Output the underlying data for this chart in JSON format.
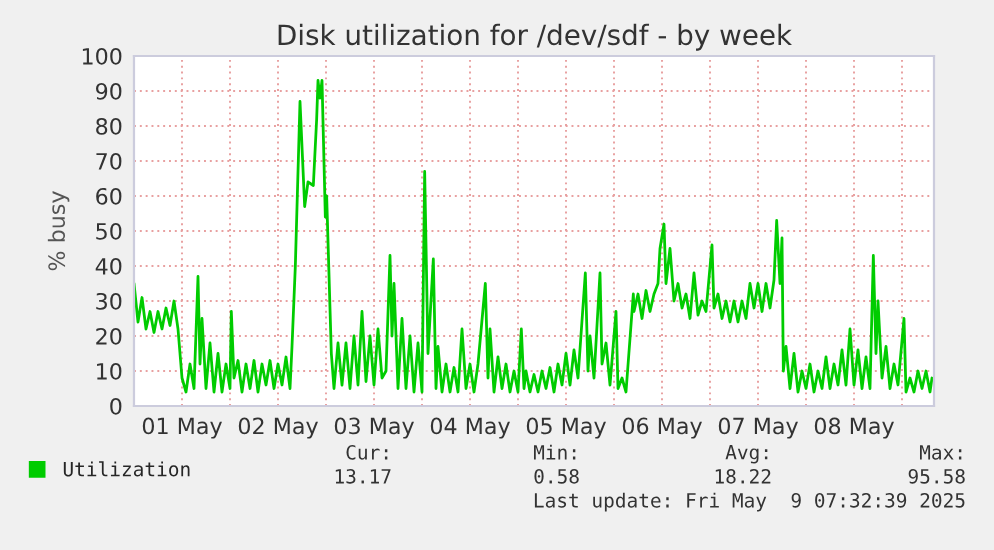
{
  "chart_data": {
    "type": "line",
    "title": "Disk utilization for /dev/sdf - by week",
    "ylabel": "% busy",
    "xlim": [
      "2025-05-01T00:00",
      "2025-05-09T08:00"
    ],
    "xticks": [
      {
        "value": "2025-05-01T12:00",
        "label": "01 May"
      },
      {
        "value": "2025-05-02T00:00",
        "label": null
      },
      {
        "value": "2025-05-02T12:00",
        "label": "02 May"
      },
      {
        "value": "2025-05-03T00:00",
        "label": null
      },
      {
        "value": "2025-05-03T12:00",
        "label": "03 May"
      },
      {
        "value": "2025-05-04T00:00",
        "label": null
      },
      {
        "value": "2025-05-04T12:00",
        "label": "04 May"
      },
      {
        "value": "2025-05-05T00:00",
        "label": null
      },
      {
        "value": "2025-05-05T12:00",
        "label": "05 May"
      },
      {
        "value": "2025-05-06T00:00",
        "label": null
      },
      {
        "value": "2025-05-06T12:00",
        "label": "06 May"
      },
      {
        "value": "2025-05-07T00:00",
        "label": null
      },
      {
        "value": "2025-05-07T12:00",
        "label": "07 May"
      },
      {
        "value": "2025-05-08T00:00",
        "label": null
      },
      {
        "value": "2025-05-08T12:00",
        "label": "08 May"
      },
      {
        "value": "2025-05-09T00:00",
        "label": null
      }
    ],
    "ylim": [
      0,
      100
    ],
    "yticks": [
      0,
      10,
      20,
      30,
      40,
      50,
      60,
      70,
      80,
      90,
      100
    ],
    "grid": true,
    "legend": "bottom left",
    "annotations": [
      "Cur:",
      "Min:",
      "Avg:",
      "Max:",
      "13.17",
      "0.58",
      "18.22",
      "95.58",
      "Last update: Fri May  9 07:32:39 2025"
    ],
    "series": [
      {
        "name": "Utilization",
        "color": "#00cc00",
        "x": [
          "2025-05-01T00:00",
          "2025-05-01T01:00",
          "2025-05-01T02:00",
          "2025-05-01T03:00",
          "2025-05-01T04:00",
          "2025-05-01T05:00",
          "2025-05-01T06:00",
          "2025-05-01T07:00",
          "2025-05-01T08:00",
          "2025-05-01T09:00",
          "2025-05-01T10:00",
          "2025-05-01T11:00",
          "2025-05-01T12:00",
          "2025-05-01T13:00",
          "2025-05-01T14:00",
          "2025-05-01T15:00",
          "2025-05-01T16:00",
          "2025-05-01T16:30",
          "2025-05-01T17:00",
          "2025-05-01T18:00",
          "2025-05-01T19:00",
          "2025-05-01T20:00",
          "2025-05-01T21:00",
          "2025-05-01T22:00",
          "2025-05-01T23:00",
          "2025-05-02T00:00",
          "2025-05-02T00:20",
          "2025-05-02T01:00",
          "2025-05-02T02:00",
          "2025-05-02T03:00",
          "2025-05-02T04:00",
          "2025-05-02T05:00",
          "2025-05-02T06:00",
          "2025-05-02T07:00",
          "2025-05-02T08:00",
          "2025-05-02T09:00",
          "2025-05-02T10:00",
          "2025-05-02T11:00",
          "2025-05-02T12:00",
          "2025-05-02T13:00",
          "2025-05-02T14:00",
          "2025-05-02T15:00",
          "2025-05-02T15:30",
          "2025-05-02T16:20",
          "2025-05-02T17:30",
          "2025-05-02T18:40",
          "2025-05-02T19:30",
          "2025-05-02T20:50",
          "2025-05-02T21:40",
          "2025-05-02T22:00",
          "2025-05-02T22:30",
          "2025-05-02T23:00",
          "2025-05-02T23:50",
          "2025-05-03T00:10",
          "2025-05-03T01:20",
          "2025-05-03T02:00",
          "2025-05-03T03:00",
          "2025-05-03T04:00",
          "2025-05-03T05:00",
          "2025-05-03T06:00",
          "2025-05-03T07:00",
          "2025-05-03T08:00",
          "2025-05-03T09:00",
          "2025-05-03T10:00",
          "2025-05-03T11:00",
          "2025-05-03T12:00",
          "2025-05-03T13:00",
          "2025-05-03T14:00",
          "2025-05-03T15:00",
          "2025-05-03T16:00",
          "2025-05-03T16:30",
          "2025-05-03T17:00",
          "2025-05-03T18:00",
          "2025-05-03T19:00",
          "2025-05-03T20:00",
          "2025-05-03T21:00",
          "2025-05-03T22:00",
          "2025-05-03T23:00",
          "2025-05-04T00:00",
          "2025-05-04T00:40",
          "2025-05-04T01:30",
          "2025-05-04T02:50",
          "2025-05-04T03:30",
          "2025-05-04T04:00",
          "2025-05-04T05:00",
          "2025-05-04T06:00",
          "2025-05-04T07:00",
          "2025-05-04T08:00",
          "2025-05-04T09:00",
          "2025-05-04T10:00",
          "2025-05-04T11:00",
          "2025-05-04T12:00",
          "2025-05-04T13:00",
          "2025-05-04T14:00",
          "2025-05-04T15:50",
          "2025-05-04T16:30",
          "2025-05-04T17:00",
          "2025-05-04T18:00",
          "2025-05-04T19:00",
          "2025-05-04T20:00",
          "2025-05-04T21:00",
          "2025-05-04T22:00",
          "2025-05-04T23:00",
          "2025-05-05T00:00",
          "2025-05-05T00:50",
          "2025-05-05T01:30",
          "2025-05-05T02:00",
          "2025-05-05T03:00",
          "2025-05-05T04:00",
          "2025-05-05T05:00",
          "2025-05-05T06:00",
          "2025-05-05T07:00",
          "2025-05-05T08:00",
          "2025-05-05T09:00",
          "2025-05-05T10:00",
          "2025-05-05T11:00",
          "2025-05-05T12:00",
          "2025-05-05T13:00",
          "2025-05-05T14:00",
          "2025-05-05T15:00",
          "2025-05-05T16:50",
          "2025-05-05T17:30",
          "2025-05-05T18:00",
          "2025-05-05T19:00",
          "2025-05-05T20:30",
          "2025-05-05T21:00",
          "2025-05-05T22:00",
          "2025-05-05T23:00",
          "2025-05-06T00:30",
          "2025-05-06T01:00",
          "2025-05-06T02:00",
          "2025-05-06T03:00",
          "2025-05-06T04:50",
          "2025-05-06T05:00",
          "2025-05-06T06:00",
          "2025-05-06T07:00",
          "2025-05-06T08:00",
          "2025-05-06T09:00",
          "2025-05-06T10:00",
          "2025-05-06T11:00",
          "2025-05-06T11:30",
          "2025-05-06T12:30",
          "2025-05-06T13:00",
          "2025-05-06T14:00",
          "2025-05-06T15:00",
          "2025-05-06T16:00",
          "2025-05-06T17:00",
          "2025-05-06T18:00",
          "2025-05-06T19:00",
          "2025-05-06T20:00",
          "2025-05-06T21:00",
          "2025-05-06T22:00",
          "2025-05-06T23:00",
          "2025-05-07T00:30",
          "2025-05-07T01:00",
          "2025-05-07T02:00",
          "2025-05-07T03:00",
          "2025-05-07T04:00",
          "2025-05-07T05:00",
          "2025-05-07T06:00",
          "2025-05-07T07:00",
          "2025-05-07T08:00",
          "2025-05-07T09:00",
          "2025-05-07T10:00",
          "2025-05-07T11:00",
          "2025-05-07T12:00",
          "2025-05-07T13:00",
          "2025-05-07T14:00",
          "2025-05-07T15:00",
          "2025-05-07T16:00",
          "2025-05-07T16:40",
          "2025-05-07T17:30",
          "2025-05-07T18:00",
          "2025-05-07T18:20",
          "2025-05-07T19:00",
          "2025-05-07T20:00",
          "2025-05-07T21:00",
          "2025-05-07T22:00",
          "2025-05-07T23:00",
          "2025-05-08T00:00",
          "2025-05-08T01:00",
          "2025-05-08T02:00",
          "2025-05-08T03:00",
          "2025-05-08T04:00",
          "2025-05-08T05:00",
          "2025-05-08T06:00",
          "2025-05-08T07:00",
          "2025-05-08T08:00",
          "2025-05-08T09:00",
          "2025-05-08T10:00",
          "2025-05-08T11:00",
          "2025-05-08T12:00",
          "2025-05-08T13:00",
          "2025-05-08T14:00",
          "2025-05-08T15:00",
          "2025-05-08T16:00",
          "2025-05-08T16:50",
          "2025-05-08T17:30",
          "2025-05-08T18:00",
          "2025-05-08T19:00",
          "2025-05-08T20:00",
          "2025-05-08T21:00",
          "2025-05-08T22:00",
          "2025-05-08T23:00",
          "2025-05-09T00:30",
          "2025-05-09T01:00",
          "2025-05-09T02:00",
          "2025-05-09T03:00",
          "2025-05-09T04:00",
          "2025-05-09T05:00",
          "2025-05-09T06:00",
          "2025-05-09T07:00",
          "2025-05-09T07:30"
        ],
        "values": [
          35,
          24,
          31,
          22,
          27,
          21,
          27,
          22,
          28,
          23,
          30,
          22,
          8,
          4,
          12,
          5,
          37,
          12,
          25,
          5,
          18,
          4,
          15,
          4,
          12,
          5,
          27,
          8,
          13,
          4,
          12,
          5,
          13,
          4,
          12,
          6,
          13,
          5,
          12,
          6,
          14,
          5,
          17,
          40,
          87,
          57,
          64,
          63,
          82,
          93,
          88,
          93,
          54,
          60,
          15,
          5,
          18,
          6,
          18,
          5,
          20,
          6,
          27,
          7,
          20,
          6,
          22,
          8,
          10,
          43,
          20,
          35,
          5,
          25,
          5,
          20,
          4,
          18,
          4,
          67,
          15,
          42,
          5,
          17,
          4,
          12,
          4,
          11,
          4,
          22,
          5,
          12,
          4,
          12,
          35,
          8,
          22,
          4,
          14,
          5,
          12,
          4,
          10,
          4,
          22,
          5,
          10,
          4,
          9,
          4,
          10,
          5,
          11,
          4,
          12,
          6,
          15,
          6,
          16,
          8,
          38,
          10,
          20,
          8,
          38,
          12,
          18,
          6,
          27,
          5,
          8,
          4,
          32,
          27,
          32,
          25,
          33,
          27,
          32,
          35,
          45,
          52,
          35,
          45,
          30,
          35,
          28,
          32,
          25,
          38,
          26,
          30,
          27,
          46,
          28,
          32,
          25,
          30,
          24,
          30,
          24,
          30,
          25,
          35,
          28,
          35,
          27,
          35,
          28,
          36,
          53,
          35,
          48,
          10,
          17,
          5,
          15,
          4,
          10,
          5,
          12,
          4,
          10,
          5,
          14,
          5,
          12,
          6,
          16,
          6,
          22,
          6,
          16,
          5,
          14,
          5,
          43,
          15,
          30,
          8,
          17,
          5,
          12,
          6,
          25,
          4,
          8,
          4,
          10,
          5,
          10,
          4,
          8
        ]
      }
    ]
  }
}
